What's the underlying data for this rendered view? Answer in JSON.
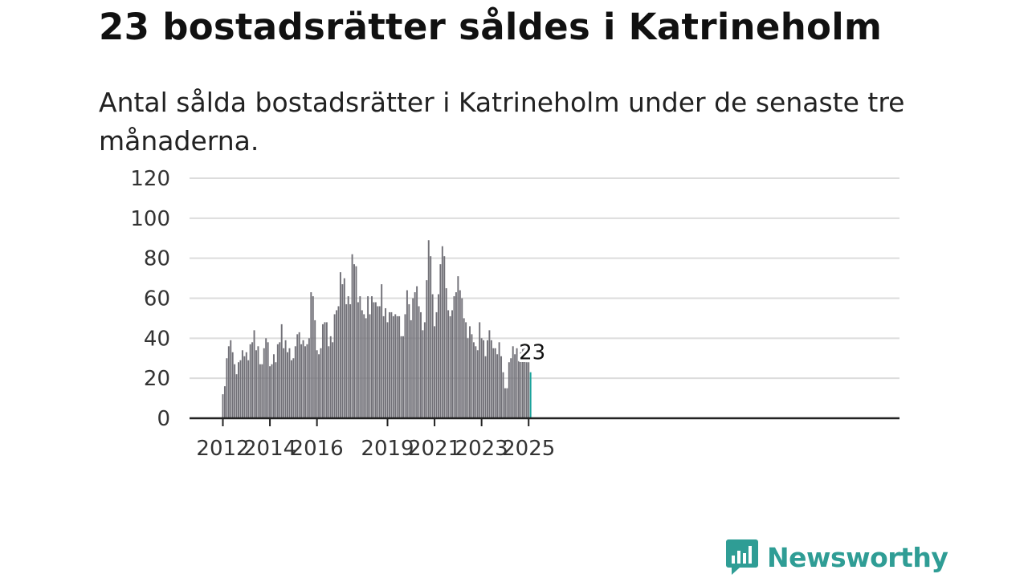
{
  "header": {
    "title": "23 bostadsrätter såldes i Katrineholm",
    "subtitle": "Antal sålda bostadsrätter i Katrineholm under de senaste tre månaderna."
  },
  "brand": {
    "name": "Newsworthy",
    "logo_icon": "chat-bar-chart-icon",
    "color": "#2f9d95"
  },
  "chart_data": {
    "type": "bar",
    "title": "",
    "xlabel": "",
    "ylabel": "",
    "ylim": [
      0,
      120
    ],
    "yticks": [
      0,
      20,
      40,
      60,
      80,
      100,
      120
    ],
    "grid": true,
    "x_start": "2012-01",
    "x_ticks": [
      {
        "label": "2012",
        "date": "2012-01"
      },
      {
        "label": "2014",
        "date": "2014-01"
      },
      {
        "label": "2016",
        "date": "2016-01"
      },
      {
        "label": "2019",
        "date": "2019-01"
      },
      {
        "label": "2021",
        "date": "2021-01"
      },
      {
        "label": "2023",
        "date": "2023-01"
      },
      {
        "label": "2025",
        "date": "2025-01"
      }
    ],
    "bar_color": "#727178",
    "highlight_color": "#1aa39b",
    "values": [
      12,
      16,
      30,
      36,
      39,
      33,
      27,
      22,
      28,
      29,
      34,
      31,
      33,
      29,
      37,
      38,
      44,
      34,
      36,
      27,
      27,
      35,
      40,
      38,
      26,
      27,
      32,
      28,
      37,
      38,
      47,
      35,
      39,
      33,
      35,
      29,
      30,
      36,
      42,
      43,
      37,
      39,
      36,
      37,
      40,
      63,
      61,
      49,
      34,
      32,
      35,
      47,
      48,
      48,
      36,
      41,
      38,
      52,
      54,
      56,
      73,
      67,
      70,
      57,
      61,
      57,
      82,
      77,
      76,
      58,
      61,
      54,
      52,
      50,
      61,
      52,
      61,
      58,
      58,
      56,
      56,
      67,
      51,
      55,
      48,
      53,
      53,
      51,
      52,
      51,
      51,
      41,
      41,
      52,
      64,
      57,
      49,
      60,
      63,
      66,
      56,
      53,
      44,
      48,
      69,
      89,
      81,
      62,
      46,
      53,
      62,
      77,
      86,
      81,
      65,
      54,
      51,
      54,
      61,
      63,
      71,
      64,
      60,
      50,
      48,
      40,
      46,
      42,
      38,
      36,
      34,
      48,
      40,
      39,
      31,
      39,
      44,
      39,
      35,
      35,
      32,
      38,
      31,
      23,
      15,
      15,
      28,
      30,
      36,
      32,
      35,
      31,
      33,
      37,
      35,
      28,
      28,
      23
    ],
    "highlight_last": true,
    "annotations": [
      {
        "label": "23",
        "at": "last"
      }
    ]
  }
}
